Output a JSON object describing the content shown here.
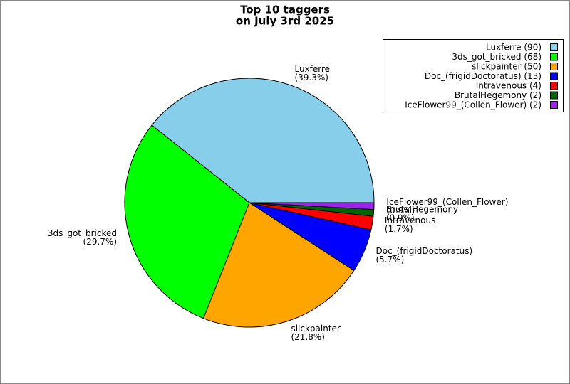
{
  "chart_data": {
    "type": "pie",
    "title": [
      "Top 10 taggers",
      "on July 3rd 2025"
    ],
    "categories": [
      "Luxferre",
      "3ds_got_bricked",
      "slickpainter",
      "Doc_(frigidDoctoratus)",
      "Intravenous",
      "BrutalHegemony",
      "IceFlower99_(Collen_Flower)"
    ],
    "values": [
      90,
      68,
      50,
      13,
      4,
      2,
      2
    ],
    "percent_labels": [
      "(39.3%)",
      "(29.7%)",
      "(21.8%)",
      "(5.7%)",
      "(1.7%)",
      "(0.9%)",
      "(0.9%)"
    ],
    "legend_labels": [
      "Luxferre (90)",
      "3ds_got_bricked (68)",
      "slickpainter (50)",
      "Doc_(frigidDoctoratus) (13)",
      "Intravenous (4)",
      "BrutalHegemony (2)",
      "IceFlower99_(Collen_Flower) (2)"
    ],
    "colors": [
      "#87ceeb",
      "#00ff00",
      "#ffa500",
      "#0000ff",
      "#ff0000",
      "#006400",
      "#a020f0"
    ],
    "legend_position": "upper right"
  }
}
